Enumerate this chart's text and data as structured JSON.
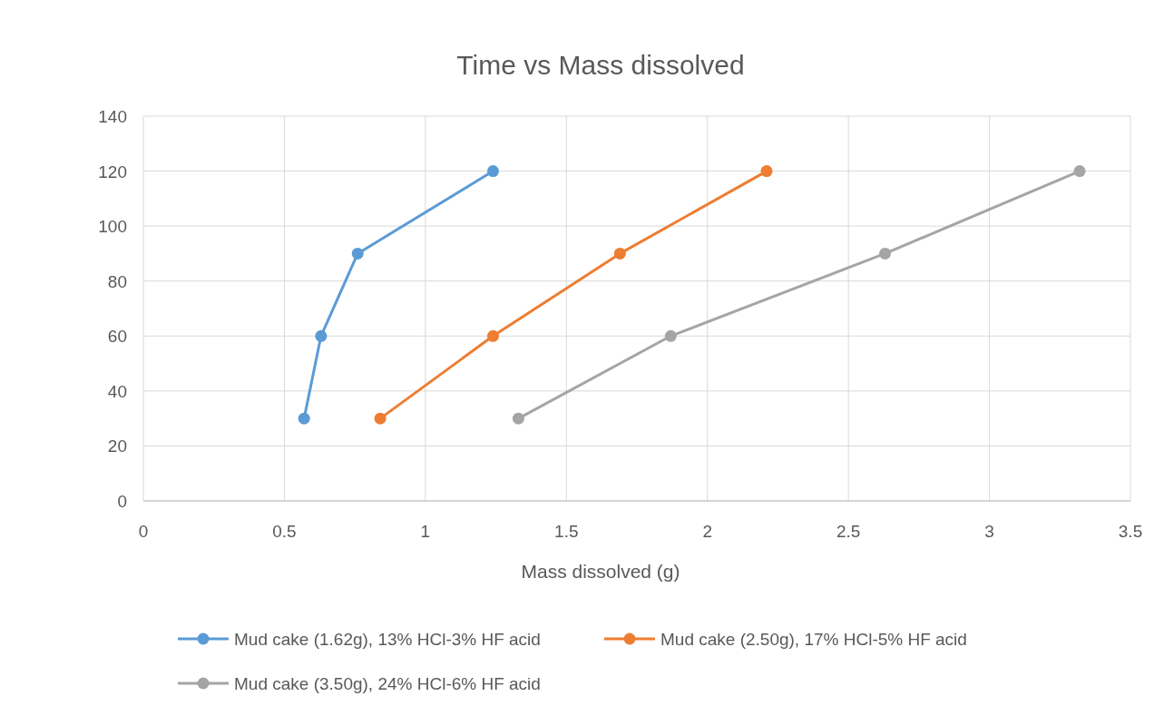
{
  "chart_data": {
    "type": "line",
    "title": "Time vs Mass dissolved",
    "xlabel": "Mass dissolved (g)",
    "xlim": [
      0,
      3.5
    ],
    "xticks": [
      0,
      0.5,
      1,
      1.5,
      2,
      2.5,
      3,
      3.5
    ],
    "ylim": [
      0,
      140
    ],
    "yticks": [
      0,
      20,
      40,
      60,
      80,
      100,
      120,
      140
    ],
    "grid": true,
    "legend": "bottom",
    "marker": "circle",
    "line_style": "solid",
    "series": [
      {
        "name": "Mud cake (1.62g), 13% HCl-3% HF acid",
        "color": "#5b9bd5",
        "x": [
          0.57,
          0.63,
          0.76,
          1.24
        ],
        "values": [
          30,
          60,
          90,
          120
        ]
      },
      {
        "name": "Mud cake (2.50g), 17% HCl-5% HF acid",
        "color": "#ed7d31",
        "x": [
          0.84,
          1.24,
          1.69,
          2.21
        ],
        "values": [
          30,
          60,
          90,
          120
        ]
      },
      {
        "name": "Mud cake (3.50g), 24% HCl-6% HF acid",
        "color": "#a5a5a5",
        "x": [
          1.33,
          1.87,
          2.63,
          3.32
        ],
        "values": [
          30,
          60,
          90,
          120
        ]
      }
    ]
  }
}
